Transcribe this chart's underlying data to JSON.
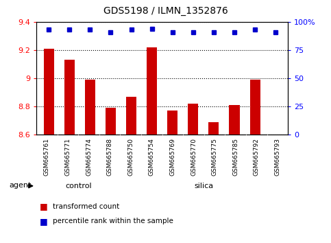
{
  "title": "GDS5198 / ILMN_1352876",
  "samples": [
    "GSM665761",
    "GSM665771",
    "GSM665774",
    "GSM665788",
    "GSM665750",
    "GSM665754",
    "GSM665769",
    "GSM665770",
    "GSM665775",
    "GSM665785",
    "GSM665792",
    "GSM665793"
  ],
  "transformed_count": [
    9.21,
    9.13,
    8.99,
    8.79,
    8.87,
    9.22,
    8.77,
    8.82,
    8.69,
    8.81,
    8.99,
    8.6
  ],
  "percentile_rank": [
    93,
    93,
    93,
    91,
    93,
    94,
    91,
    91,
    91,
    91,
    93,
    91
  ],
  "ylim_left": [
    8.6,
    9.4
  ],
  "ylim_right": [
    0,
    100
  ],
  "yticks_left": [
    8.6,
    8.8,
    9.0,
    9.2,
    9.4
  ],
  "yticks_right": [
    0,
    25,
    50,
    75,
    100
  ],
  "ytick_labels_left": [
    "8.6",
    "8.8",
    "9",
    "9.2",
    "9.4"
  ],
  "ytick_labels_right": [
    "0",
    "25",
    "50",
    "75",
    "100%"
  ],
  "control_count": 4,
  "silica_count": 8,
  "bar_color": "#cc0000",
  "dot_color": "#0000cc",
  "control_color": "#7CDD6F",
  "silica_color": "#7CDD6F",
  "group_label_control": "control",
  "group_label_silica": "silica",
  "agent_label": "agent",
  "legend_bar_label": "transformed count",
  "legend_dot_label": "percentile rank within the sample",
  "plot_bg_color": "#ffffff",
  "bar_width": 0.5,
  "xtick_bg_color": "#d0d0d0"
}
